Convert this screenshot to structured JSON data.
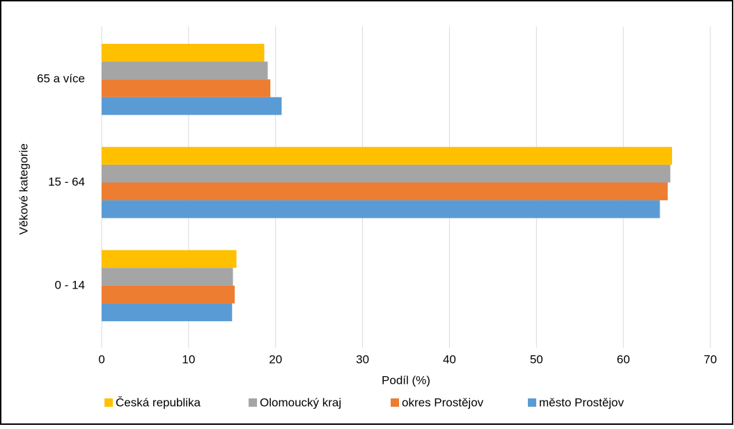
{
  "chart_data": {
    "type": "hbar",
    "x_label": "Podíl (%)",
    "y_label": "Věkové kategorie",
    "categories": [
      "0 - 14",
      "15 - 64",
      "65 a více"
    ],
    "series": [
      {
        "name": "Česká republika",
        "color": "#ffc000",
        "values": [
          15.5,
          65.6,
          18.7
        ]
      },
      {
        "name": "Olomoucký kraj",
        "color": "#a5a5a5",
        "values": [
          15.1,
          65.4,
          19.1
        ]
      },
      {
        "name": "okres Prostějov",
        "color": "#ed7d31",
        "values": [
          15.3,
          65.1,
          19.4
        ]
      },
      {
        "name": "město Prostějov",
        "color": "#5b9bd5",
        "values": [
          15.0,
          64.2,
          20.7
        ]
      }
    ],
    "xlim": [
      0,
      70
    ],
    "xticks": [
      0,
      10,
      20,
      30,
      40,
      50,
      60,
      70
    ],
    "grid": true,
    "legend": "bottom"
  }
}
